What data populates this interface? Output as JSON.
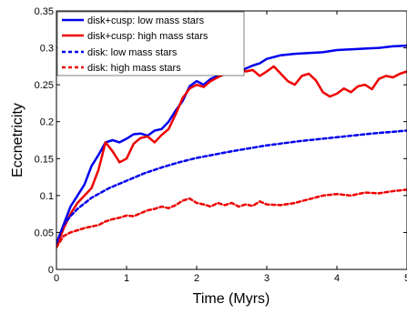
{
  "chart_data": {
    "type": "line",
    "title": "",
    "xlabel": "Time (Myrs)",
    "ylabel": "Eccnetricity",
    "xlim": [
      0,
      5
    ],
    "ylim": [
      0,
      0.35
    ],
    "xticks": [
      0,
      1,
      2,
      3,
      4,
      5
    ],
    "xtick_labels": [
      "0",
      "1",
      "2",
      "3",
      "4",
      "5"
    ],
    "yticks": [
      0,
      0.05,
      0.1,
      0.15,
      0.2,
      0.25,
      0.3,
      0.35
    ],
    "ytick_labels": [
      "0",
      "0.05",
      "0.1",
      "0.15",
      "0.2",
      "0.25",
      "0.3",
      "0.35"
    ],
    "grid": false,
    "legend_position": "top-left",
    "series": [
      {
        "name": "disk+cusp: low mass stars",
        "color": "#0000ee",
        "style": "solid",
        "x": [
          0,
          0.1,
          0.2,
          0.3,
          0.4,
          0.5,
          0.6,
          0.7,
          0.8,
          0.9,
          1.0,
          1.1,
          1.2,
          1.3,
          1.4,
          1.5,
          1.6,
          1.7,
          1.8,
          1.9,
          2.0,
          2.1,
          2.2,
          2.3,
          2.4,
          2.5,
          2.6,
          2.7,
          2.8,
          2.9,
          3.0,
          3.2,
          3.4,
          3.6,
          3.8,
          4.0,
          4.2,
          4.4,
          4.6,
          4.8,
          5.0
        ],
        "y": [
          0.035,
          0.06,
          0.085,
          0.1,
          0.115,
          0.14,
          0.155,
          0.172,
          0.175,
          0.172,
          0.177,
          0.183,
          0.184,
          0.181,
          0.188,
          0.19,
          0.2,
          0.215,
          0.228,
          0.248,
          0.255,
          0.25,
          0.258,
          0.262,
          0.264,
          0.268,
          0.265,
          0.272,
          0.276,
          0.279,
          0.285,
          0.29,
          0.292,
          0.293,
          0.294,
          0.297,
          0.298,
          0.299,
          0.3,
          0.302,
          0.303
        ]
      },
      {
        "name": "disk+cusp: high mass stars",
        "color": "#ee0000",
        "style": "solid",
        "x": [
          0,
          0.1,
          0.2,
          0.3,
          0.4,
          0.5,
          0.6,
          0.7,
          0.8,
          0.9,
          1.0,
          1.1,
          1.2,
          1.3,
          1.4,
          1.5,
          1.6,
          1.7,
          1.8,
          1.9,
          2.0,
          2.1,
          2.2,
          2.3,
          2.4,
          2.5,
          2.6,
          2.7,
          2.8,
          2.9,
          3.0,
          3.1,
          3.2,
          3.3,
          3.4,
          3.5,
          3.6,
          3.7,
          3.8,
          3.9,
          4.0,
          4.1,
          4.2,
          4.3,
          4.4,
          4.5,
          4.6,
          4.7,
          4.8,
          4.9,
          5.0
        ],
        "y": [
          0.03,
          0.055,
          0.075,
          0.09,
          0.1,
          0.11,
          0.135,
          0.172,
          0.16,
          0.145,
          0.15,
          0.17,
          0.178,
          0.18,
          0.172,
          0.182,
          0.19,
          0.21,
          0.232,
          0.245,
          0.25,
          0.247,
          0.255,
          0.26,
          0.265,
          0.27,
          0.272,
          0.268,
          0.27,
          0.262,
          0.268,
          0.275,
          0.265,
          0.255,
          0.25,
          0.262,
          0.265,
          0.256,
          0.24,
          0.234,
          0.238,
          0.245,
          0.24,
          0.248,
          0.25,
          0.244,
          0.258,
          0.262,
          0.26,
          0.265,
          0.268
        ]
      },
      {
        "name": "disk: low mass stars",
        "color": "#0000ee",
        "style": "dashed",
        "x": [
          0,
          0.1,
          0.2,
          0.3,
          0.5,
          0.75,
          1.0,
          1.25,
          1.5,
          1.75,
          2.0,
          2.5,
          3.0,
          3.5,
          4.0,
          4.5,
          5.0
        ],
        "y": [
          0.035,
          0.06,
          0.072,
          0.082,
          0.097,
          0.11,
          0.12,
          0.13,
          0.138,
          0.145,
          0.151,
          0.16,
          0.168,
          0.174,
          0.179,
          0.184,
          0.188
        ]
      },
      {
        "name": "disk: high mass stars",
        "color": "#ee0000",
        "style": "dashed",
        "x": [
          0,
          0.1,
          0.2,
          0.3,
          0.4,
          0.5,
          0.6,
          0.7,
          0.8,
          0.9,
          1.0,
          1.1,
          1.2,
          1.3,
          1.4,
          1.5,
          1.6,
          1.7,
          1.8,
          1.9,
          2.0,
          2.1,
          2.2,
          2.3,
          2.4,
          2.5,
          2.6,
          2.7,
          2.8,
          2.9,
          3.0,
          3.2,
          3.4,
          3.6,
          3.8,
          4.0,
          4.2,
          4.4,
          4.6,
          4.8,
          5.0
        ],
        "y": [
          0.03,
          0.045,
          0.05,
          0.053,
          0.056,
          0.058,
          0.06,
          0.065,
          0.068,
          0.07,
          0.073,
          0.072,
          0.076,
          0.08,
          0.082,
          0.085,
          0.083,
          0.087,
          0.093,
          0.096,
          0.09,
          0.088,
          0.085,
          0.09,
          0.087,
          0.09,
          0.085,
          0.088,
          0.086,
          0.092,
          0.088,
          0.087,
          0.09,
          0.095,
          0.1,
          0.102,
          0.1,
          0.104,
          0.103,
          0.106,
          0.108
        ]
      }
    ]
  }
}
